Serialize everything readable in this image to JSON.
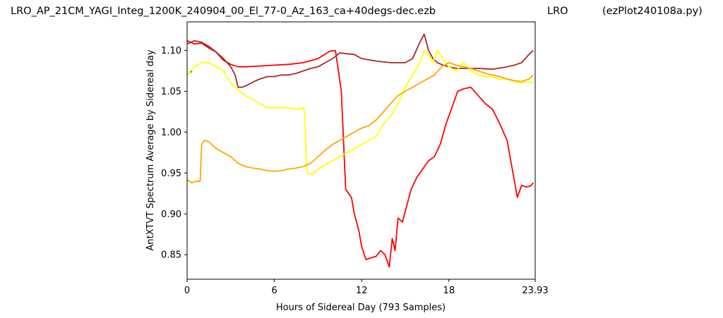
{
  "header": {
    "left": "LRO_AP_21CM_YAGI_Integ_1200K_240904_00_El_77-0_Az_163_ca+40degs-dec.ezb",
    "middle": "LRO",
    "right": "(ezPlot240108a.py)"
  },
  "chart_data": {
    "type": "line",
    "title": "",
    "xlabel": "Hours of Sidereal Day  (793 Samples)",
    "ylabel": "AntXTVT Spectrum Average by Sidereal day",
    "xlim": [
      0,
      23.93
    ],
    "ylim": [
      0.82,
      1.135
    ],
    "x_ticks": [
      0,
      6,
      12,
      18,
      23.93
    ],
    "x_tick_labels": [
      "0",
      "6",
      "12",
      "18",
      "23.93"
    ],
    "y_ticks": [
      0.85,
      0.9,
      0.95,
      1.0,
      1.05,
      1.1
    ],
    "y_tick_labels": [
      "0.85",
      "0.90",
      "0.95",
      "1.00",
      "1.05",
      "1.10"
    ],
    "grid": false,
    "series": [
      {
        "color": "#008000",
        "x": [
          0,
          0.2,
          0.35
        ],
        "y": [
          1.07,
          1.074,
          1.074
        ]
      },
      {
        "color": "#ff0000",
        "x": [
          0,
          0.5,
          1,
          1.5,
          2,
          2.5,
          3,
          3.5,
          4,
          5,
          6,
          7,
          8,
          9,
          9.8,
          10.2,
          10.6,
          10.9,
          11.1,
          11.3,
          11.5,
          11.8,
          12,
          12.3,
          12.6,
          13,
          13.3,
          13.6,
          13.9,
          14.1,
          14.3,
          14.5,
          14.8,
          15.1,
          15.4,
          15.8,
          16.2,
          16.6,
          17,
          17.4,
          17.8,
          18.2,
          18.6,
          19,
          19.5,
          20,
          20.5,
          21,
          21.5,
          22,
          22.4,
          22.7,
          23,
          23.3,
          23.6,
          23.8
        ],
        "y": [
          1.112,
          1.108,
          1.109,
          1.103,
          1.098,
          1.088,
          1.083,
          1.08,
          1.08,
          1.081,
          1.082,
          1.083,
          1.085,
          1.09,
          1.099,
          1.1,
          1.05,
          0.93,
          0.925,
          0.92,
          0.9,
          0.88,
          0.86,
          0.844,
          0.846,
          0.848,
          0.855,
          0.85,
          0.835,
          0.87,
          0.855,
          0.895,
          0.89,
          0.91,
          0.93,
          0.945,
          0.955,
          0.965,
          0.97,
          0.985,
          1.01,
          1.03,
          1.05,
          1.053,
          1.055,
          1.045,
          1.035,
          1.028,
          1.01,
          0.99,
          0.95,
          0.92,
          0.935,
          0.933,
          0.934,
          0.938
        ]
      },
      {
        "color": "#a52a2a",
        "x": [
          0,
          0.5,
          1,
          1.5,
          2,
          2.5,
          3,
          3.3,
          3.5,
          3.8,
          4.2,
          4.6,
          5,
          5.5,
          6,
          6.5,
          7,
          7.5,
          8,
          8.5,
          9,
          9.5,
          10,
          10.5,
          11,
          11.5,
          12,
          13,
          14,
          15,
          15.5,
          16,
          16.3,
          16.6,
          16.9,
          17.2,
          17.6,
          18,
          18.5,
          19,
          20,
          21,
          22,
          22.5,
          23,
          23.5,
          23.8
        ],
        "y": [
          1.108,
          1.112,
          1.11,
          1.105,
          1.098,
          1.09,
          1.08,
          1.07,
          1.055,
          1.055,
          1.058,
          1.062,
          1.065,
          1.068,
          1.068,
          1.07,
          1.07,
          1.072,
          1.075,
          1.078,
          1.08,
          1.085,
          1.09,
          1.097,
          1.096,
          1.095,
          1.09,
          1.087,
          1.085,
          1.085,
          1.09,
          1.11,
          1.12,
          1.1,
          1.09,
          1.085,
          1.082,
          1.08,
          1.078,
          1.078,
          1.078,
          1.077,
          1.08,
          1.082,
          1.085,
          1.095,
          1.1
        ]
      },
      {
        "color": "#ffff00",
        "x": [
          0,
          0.5,
          1,
          1.5,
          2,
          2.5,
          3,
          3.5,
          4,
          4.5,
          5,
          5.5,
          6,
          6.5,
          7,
          7.5,
          8,
          8.1,
          8.2,
          8.3,
          8.6,
          9,
          9.5,
          10,
          10.5,
          11,
          11.5,
          12,
          12.5,
          13,
          13.5,
          14,
          14.5,
          15,
          15.5,
          16,
          16.3,
          16.6,
          16.9,
          17.2,
          17.6,
          18,
          18.5,
          19,
          19.5,
          20,
          20.5,
          21,
          21.5,
          22,
          22.5,
          23,
          23.5,
          23.8
        ],
        "y": [
          1.07,
          1.08,
          1.085,
          1.085,
          1.08,
          1.075,
          1.06,
          1.052,
          1.045,
          1.04,
          1.035,
          1.03,
          1.03,
          1.03,
          1.03,
          1.028,
          1.03,
          1.02,
          0.96,
          0.95,
          0.948,
          0.955,
          0.96,
          0.965,
          0.97,
          0.975,
          0.98,
          0.985,
          0.99,
          0.995,
          1.01,
          1.02,
          1.035,
          1.055,
          1.07,
          1.085,
          1.1,
          1.095,
          1.085,
          1.1,
          1.09,
          1.08,
          1.075,
          1.085,
          1.075,
          1.07,
          1.068,
          1.068,
          1.065,
          1.065,
          1.062,
          1.06,
          1.062,
          1.06
        ]
      },
      {
        "color": "#ffa500",
        "x": [
          0,
          0.3,
          0.6,
          0.9,
          1,
          1.2,
          1.5,
          2,
          2.5,
          3,
          3.5,
          4,
          4.5,
          5,
          5.5,
          6,
          6.5,
          7,
          7.5,
          8,
          8.5,
          9,
          9.5,
          10,
          10.5,
          11,
          11.5,
          12,
          12.5,
          13,
          13.5,
          14,
          14.5,
          15,
          15.5,
          16,
          16.5,
          17,
          17.5,
          18,
          18.5,
          19,
          19.5,
          20,
          20.5,
          21,
          21.5,
          22,
          22.5,
          23,
          23.5,
          23.8
        ],
        "y": [
          0.942,
          0.938,
          0.94,
          0.94,
          0.985,
          0.99,
          0.988,
          0.98,
          0.975,
          0.97,
          0.962,
          0.958,
          0.956,
          0.955,
          0.953,
          0.952,
          0.953,
          0.955,
          0.956,
          0.958,
          0.962,
          0.97,
          0.978,
          0.985,
          0.99,
          0.995,
          1.0,
          1.005,
          1.008,
          1.015,
          1.025,
          1.035,
          1.045,
          1.05,
          1.055,
          1.06,
          1.065,
          1.07,
          1.08,
          1.085,
          1.082,
          1.08,
          1.078,
          1.075,
          1.072,
          1.07,
          1.068,
          1.065,
          1.063,
          1.062,
          1.065,
          1.07
        ]
      }
    ]
  }
}
